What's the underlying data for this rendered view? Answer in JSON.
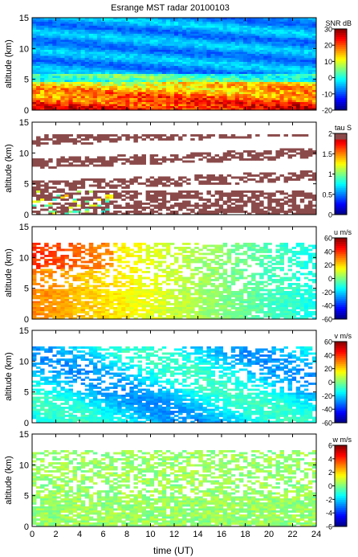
{
  "chart_data": {
    "type": "heatmap",
    "title": "Esrange MST radar 20100103",
    "xlabel": "time (UT)",
    "xlim": [
      0,
      24
    ],
    "x_ticks": [
      "0",
      "2",
      "4",
      "6",
      "8",
      "10",
      "12",
      "14",
      "16",
      "18",
      "20",
      "22",
      "24"
    ],
    "panels": [
      {
        "name": "snr",
        "ylabel": "altitude (km)",
        "ylim": [
          0,
          15
        ],
        "y_ticks": [
          "0",
          "5",
          "10",
          "15"
        ],
        "colorbar_title": "SNR dB",
        "colorbar_range": [
          -20,
          30
        ],
        "colorbar_ticks": [
          "30",
          "20",
          "10",
          "0",
          "-10",
          "-20"
        ],
        "colorbar_values": [
          30,
          20,
          10,
          0,
          -10,
          -20
        ],
        "description_values": {
          "background_snr_db": -5,
          "low_altitude_snr_db": 22
        }
      },
      {
        "name": "tau",
        "ylabel": "altitude (km)",
        "ylim": [
          0,
          15
        ],
        "y_ticks": [
          "0",
          "5",
          "10",
          "15"
        ],
        "colorbar_title": "tau S",
        "colorbar_range": [
          0,
          2
        ],
        "colorbar_ticks": [
          "2",
          "1.5",
          "1",
          "0.5",
          "0"
        ],
        "colorbar_values": [
          2,
          1.5,
          1,
          0.5,
          0
        ]
      },
      {
        "name": "u",
        "ylabel": "altitude (km)",
        "ylim": [
          0,
          15
        ],
        "y_ticks": [
          "0",
          "5",
          "10",
          "15"
        ],
        "colorbar_title": "u m/s",
        "colorbar_range": [
          -60,
          60
        ],
        "colorbar_ticks": [
          "60",
          "40",
          "20",
          "0",
          "-20",
          "-40",
          "-60"
        ],
        "colorbar_values": [
          60,
          40,
          20,
          0,
          -20,
          -40,
          -60
        ]
      },
      {
        "name": "v",
        "ylabel": "altitude (km)",
        "ylim": [
          0,
          15
        ],
        "y_ticks": [
          "0",
          "5",
          "10",
          "15"
        ],
        "colorbar_title": "v m/s",
        "colorbar_range": [
          -60,
          60
        ],
        "colorbar_ticks": [
          "60",
          "40",
          "20",
          "0",
          "-20",
          "-40",
          "-60"
        ],
        "colorbar_values": [
          60,
          40,
          20,
          0,
          -20,
          -40,
          -60
        ]
      },
      {
        "name": "w",
        "ylabel": "altitude (km)",
        "ylim": [
          0,
          15
        ],
        "y_ticks": [
          "0",
          "5",
          "10",
          "15"
        ],
        "colorbar_title": "w m/s",
        "colorbar_range": [
          -6,
          6
        ],
        "colorbar_ticks": [
          "6",
          "4",
          "2",
          "0",
          "-2",
          "-4",
          "-6"
        ],
        "colorbar_values": [
          6,
          4,
          2,
          0,
          -2,
          -4,
          -6
        ]
      }
    ]
  }
}
